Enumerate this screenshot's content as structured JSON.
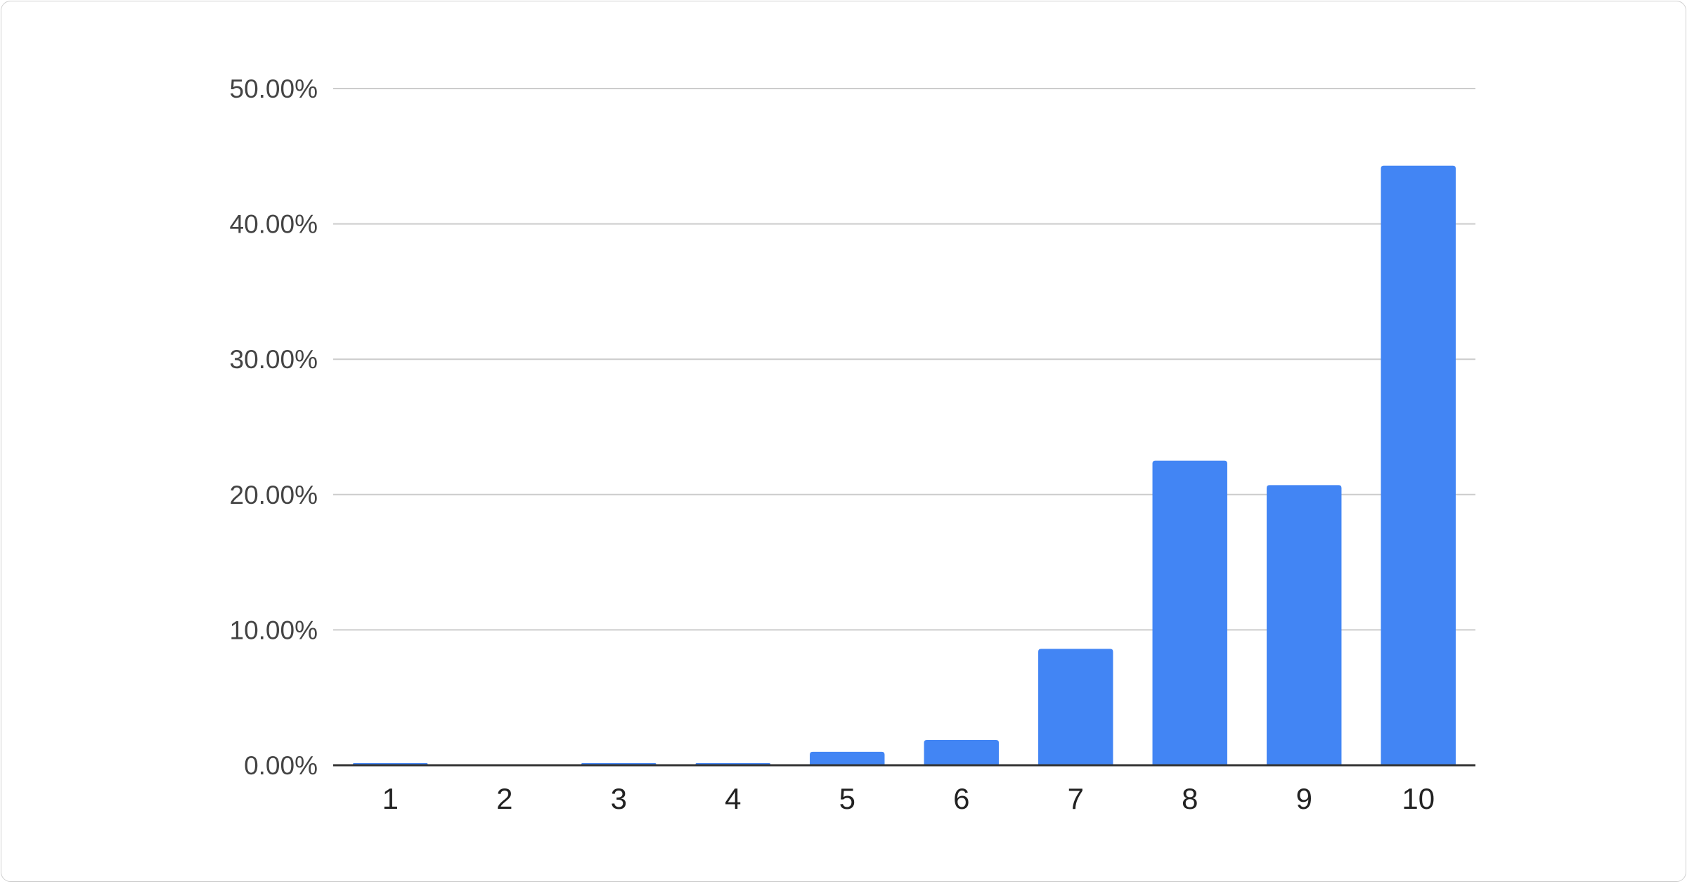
{
  "chart_data": {
    "type": "bar",
    "title": "",
    "xlabel": "",
    "ylabel": "",
    "categories": [
      "1",
      "2",
      "3",
      "4",
      "5",
      "6",
      "7",
      "8",
      "9",
      "10"
    ],
    "values": [
      0.05,
      0,
      0.05,
      0.05,
      0.99,
      1.87,
      8.6,
      22.5,
      20.7,
      44.3
    ],
    "ylim": [
      0,
      50
    ],
    "yticks": [
      "0.00%",
      "10.00%",
      "20.00%",
      "30.00%",
      "40.00%",
      "50.00%"
    ],
    "ytick_values": [
      0,
      10,
      20,
      30,
      40,
      50
    ],
    "grid": true,
    "legend": "none",
    "bar_color": "#4285f4"
  }
}
